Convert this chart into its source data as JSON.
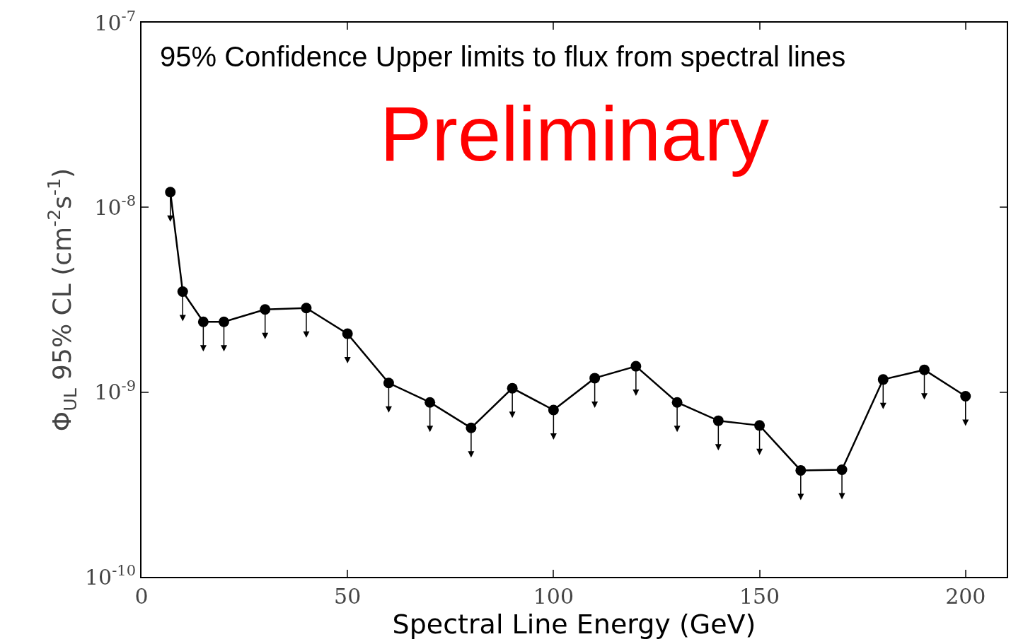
{
  "chart_data": {
    "type": "line",
    "xlabel": "Spectral Line Energy (GeV)",
    "ylabel": "Φ$_{UL}$ 95% CL (cm$^{-2}$s$^{-1}$)",
    "annotations": [
      "95% Confidence Upper limits to flux from spectral lines",
      "Preliminary"
    ],
    "series": [
      {
        "color": "#000000",
        "x": [
          7,
          10,
          15,
          20,
          30,
          40,
          50,
          60,
          70,
          80,
          90,
          100,
          110,
          120,
          130,
          140,
          150,
          160,
          170,
          180,
          190,
          200
        ],
        "values": [
          1.21e-08,
          3.5e-09,
          2.4e-09,
          2.4e-09,
          2.8e-09,
          2.85e-09,
          2.07e-09,
          1.12e-09,
          8.8e-10,
          6.4e-10,
          1.05e-09,
          8e-10,
          1.19e-09,
          1.38e-09,
          8.8e-10,
          7e-10,
          6.6e-10,
          3.77e-10,
          3.8e-10,
          1.17e-09,
          1.32e-09,
          9.5e-10
        ]
      }
    ],
    "marker": "circle",
    "line_style": "solid",
    "log": "y",
    "xlim": [
      0,
      210
    ],
    "xticks": [
      0,
      50,
      100,
      150,
      200
    ],
    "ylim": [
      1e-10,
      1e-07
    ],
    "yticks": [
      {
        "value": 1e-10,
        "label": "10$^{-10}$"
      },
      {
        "value": 1e-09,
        "label": "10$^{-9}$"
      },
      {
        "value": 1e-08,
        "label": "10$^{-8}$"
      },
      {
        "value": 1e-07,
        "label": "10$^{-7}$"
      }
    ]
  }
}
